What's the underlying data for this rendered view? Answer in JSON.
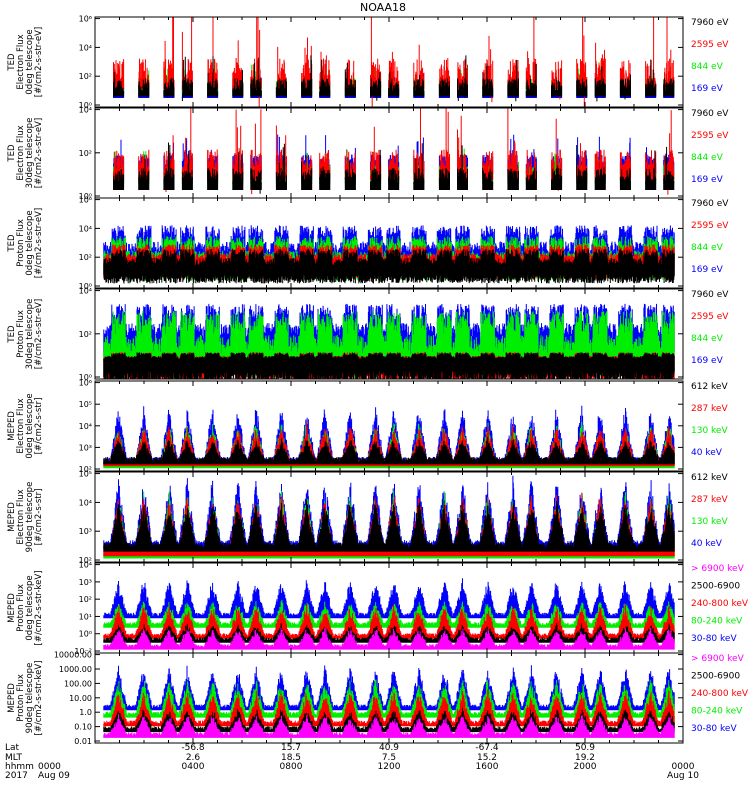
{
  "title": "NOAA18",
  "colors": {
    "black": "#000000",
    "red": "#ff0000",
    "green": "#00ee00",
    "blue": "#0000ff",
    "magenta": "#ff00ff"
  },
  "chart_data": [
    {
      "type": "line",
      "ylabel": [
        "TED",
        "Electron Flux",
        "0deg telescope",
        "[#/cm2-s-str-eV]"
      ],
      "log": true,
      "yticks": [
        "10⁰",
        "10²",
        "10⁴",
        "10⁶"
      ],
      "yrange_exp": [
        0,
        6
      ],
      "series": [
        {
          "name": "7960 eV",
          "color": "black",
          "kind": "spiky",
          "base": 1.3,
          "amp": 1.5
        },
        {
          "name": "2595 eV",
          "color": "red",
          "kind": "spiky",
          "base": 1.8,
          "amp": 3.5
        },
        {
          "name": "844 eV",
          "color": "green",
          "kind": "spiky",
          "base": 1.5,
          "amp": 1.0
        },
        {
          "name": "169 eV",
          "color": "blue",
          "kind": "spiky",
          "base": 1.2,
          "amp": 0.8
        }
      ]
    },
    {
      "type": "line",
      "ylabel": [
        "TED",
        "Electron Flux",
        "30deg telescope",
        "[#/cm2-s-str-eV]"
      ],
      "log": true,
      "yticks": [
        "10⁰",
        "10²",
        "10⁴"
      ],
      "yrange_exp": [
        0,
        4.5
      ],
      "series": [
        {
          "name": "7960 eV",
          "color": "black",
          "kind": "spiky",
          "base": 1.0,
          "amp": 1.2
        },
        {
          "name": "2595 eV",
          "color": "red",
          "kind": "spiky",
          "base": 1.5,
          "amp": 2.2
        },
        {
          "name": "844 eV",
          "color": "green",
          "kind": "spiky",
          "base": 1.3,
          "amp": 0.8
        },
        {
          "name": "169 eV",
          "color": "blue",
          "kind": "spiky",
          "base": 1.8,
          "amp": 0.9
        }
      ]
    },
    {
      "type": "line",
      "ylabel": [
        "TED",
        "Proton Flux",
        "0deg telescope",
        "[#/cm2-s-str-eV]"
      ],
      "log": true,
      "yticks": [
        "10⁰",
        "10²",
        "10⁴",
        "10⁶"
      ],
      "yrange_exp": [
        0,
        6
      ],
      "series": [
        {
          "name": "7960 eV",
          "color": "black",
          "kind": "dense",
          "base": 1.5,
          "amp": 1.0
        },
        {
          "name": "2595 eV",
          "color": "red",
          "kind": "dense",
          "base": 1.8,
          "amp": 1.0
        },
        {
          "name": "844 eV",
          "color": "green",
          "kind": "dense",
          "base": 1.7,
          "amp": 1.6
        },
        {
          "name": "169 eV",
          "color": "blue",
          "kind": "dense",
          "base": 2.2,
          "amp": 1.8
        }
      ]
    },
    {
      "type": "line",
      "ylabel": [
        "TED",
        "Proton Flux",
        "30deg telescope",
        "[#/cm2-s-str-eV]"
      ],
      "log": true,
      "yticks": [
        "10⁰",
        "10²",
        "10⁴"
      ],
      "yrange_exp": [
        0,
        4.5
      ],
      "series": [
        {
          "name": "7960 eV",
          "color": "black",
          "kind": "dense",
          "base": 1.0,
          "amp": 0.3
        },
        {
          "name": "2595 eV",
          "color": "red",
          "kind": "dense",
          "base": 1.0,
          "amp": 0.3
        },
        {
          "name": "844 eV",
          "color": "green",
          "kind": "dense",
          "base": 1.2,
          "amp": 2.0
        },
        {
          "name": "169 eV",
          "color": "blue",
          "kind": "dense",
          "base": 2.0,
          "amp": 1.6
        }
      ]
    },
    {
      "type": "line",
      "ylabel": [
        "MEPED",
        "Electron Flux",
        "0deg telescope",
        "[#/cm2-s-str]"
      ],
      "log": true,
      "yticks": [
        "10²",
        "10³",
        "10⁴",
        "10⁵",
        "10⁶"
      ],
      "yrange_exp": [
        1.7,
        6.5
      ],
      "series": [
        {
          "name": "612 keV",
          "color": "black",
          "kind": "bursty",
          "base": 2.2,
          "amp": 1.0
        },
        {
          "name": "287 keV",
          "color": "red",
          "kind": "bursty",
          "base": 2.1,
          "amp": 1.8
        },
        {
          "name": "130 keV",
          "color": "green",
          "kind": "bursty",
          "base": 2.0,
          "amp": 2.0
        },
        {
          "name": "40 keV",
          "color": "blue",
          "kind": "bursty",
          "base": 2.2,
          "amp": 2.6
        }
      ]
    },
    {
      "type": "line",
      "ylabel": [
        "MEPED",
        "Electron Flux",
        "90deg telescope",
        "[#/cm2-s-str]"
      ],
      "log": true,
      "yticks": [
        "10²",
        "10³",
        "10⁴",
        "10⁵"
      ],
      "yrange_exp": [
        1.7,
        5.6
      ],
      "series": [
        {
          "name": "612 keV",
          "color": "black",
          "kind": "bursty",
          "base": 2.3,
          "amp": 1.8
        },
        {
          "name": "287 keV",
          "color": "red",
          "kind": "bursty",
          "base": 2.1,
          "amp": 2.2
        },
        {
          "name": "130 keV",
          "color": "green",
          "kind": "bursty",
          "base": 2.0,
          "amp": 2.4
        },
        {
          "name": "40 keV",
          "color": "blue",
          "kind": "bursty",
          "base": 2.4,
          "amp": 2.6
        }
      ]
    },
    {
      "type": "line",
      "ylabel": [
        "MEPED",
        "Proton Flux",
        "0deg telescope",
        "[#/cm2-s-str-keV]"
      ],
      "log": true,
      "yticks": [
        "10⁻²",
        "10⁰",
        "10¹",
        "10²",
        "10³",
        "10⁴"
      ],
      "yrange_exp": [
        -2.4,
        4.2
      ],
      "series": [
        {
          "name": "> 6900 keV",
          "color": "magenta",
          "kind": "bursty",
          "base": -2.0,
          "amp": 1.2
        },
        {
          "name": "2500-6900",
          "color": "black",
          "kind": "bursty",
          "base": -1.5,
          "amp": 1.0
        },
        {
          "name": "240-800 keV",
          "color": "red",
          "kind": "bursty",
          "base": -1.2,
          "amp": 2.0
        },
        {
          "name": "80-240 keV",
          "color": "green",
          "kind": "bursty",
          "base": -0.4,
          "amp": 1.6
        },
        {
          "name": "30-80 keV",
          "color": "blue",
          "kind": "bursty",
          "base": 0.3,
          "amp": 2.4
        }
      ]
    },
    {
      "type": "line",
      "ylabel": [
        "MEPED",
        "Proton Flux",
        "90deg telescope",
        "[#/cm2-s-str-keV]"
      ],
      "log": true,
      "yticks": [
        "0.01",
        "0.10",
        "1.0",
        "10.00",
        "100.00",
        "1000.00",
        "10000.00"
      ],
      "yrange_exp": [
        -2.1,
        4.1
      ],
      "series": [
        {
          "name": "> 6900 keV",
          "color": "magenta",
          "kind": "bursty",
          "base": -1.6,
          "amp": 1.2
        },
        {
          "name": "2500-6900",
          "color": "black",
          "kind": "bursty",
          "base": -1.2,
          "amp": 1.2
        },
        {
          "name": "240-800 keV",
          "color": "red",
          "kind": "bursty",
          "base": -0.8,
          "amp": 2.0
        },
        {
          "name": "80-240 keV",
          "color": "green",
          "kind": "bursty",
          "base": -0.2,
          "amp": 2.2
        },
        {
          "name": "30-80 keV",
          "color": "blue",
          "kind": "bursty",
          "base": 0.3,
          "amp": 2.6
        }
      ]
    }
  ],
  "x_axis": {
    "row_labels": [
      "Lat",
      "MLT",
      "hhmm",
      "2017"
    ],
    "ticks": [
      {
        "lat": "",
        "mlt": "",
        "hhmm": "0000",
        "date": "Aug 09"
      },
      {
        "lat": "-56.8",
        "mlt": "2.6",
        "hhmm": "0400",
        "date": ""
      },
      {
        "lat": "15.7",
        "mlt": "18.5",
        "hhmm": "0800",
        "date": ""
      },
      {
        "lat": "40.9",
        "mlt": "7.5",
        "hhmm": "1200",
        "date": ""
      },
      {
        "lat": "-67.4",
        "mlt": "15.2",
        "hhmm": "1600",
        "date": ""
      },
      {
        "lat": "50.9",
        "mlt": "19.2",
        "hhmm": "2000",
        "date": ""
      },
      {
        "lat": "",
        "mlt": "",
        "hhmm": "0000",
        "date": "Aug 10"
      }
    ]
  }
}
